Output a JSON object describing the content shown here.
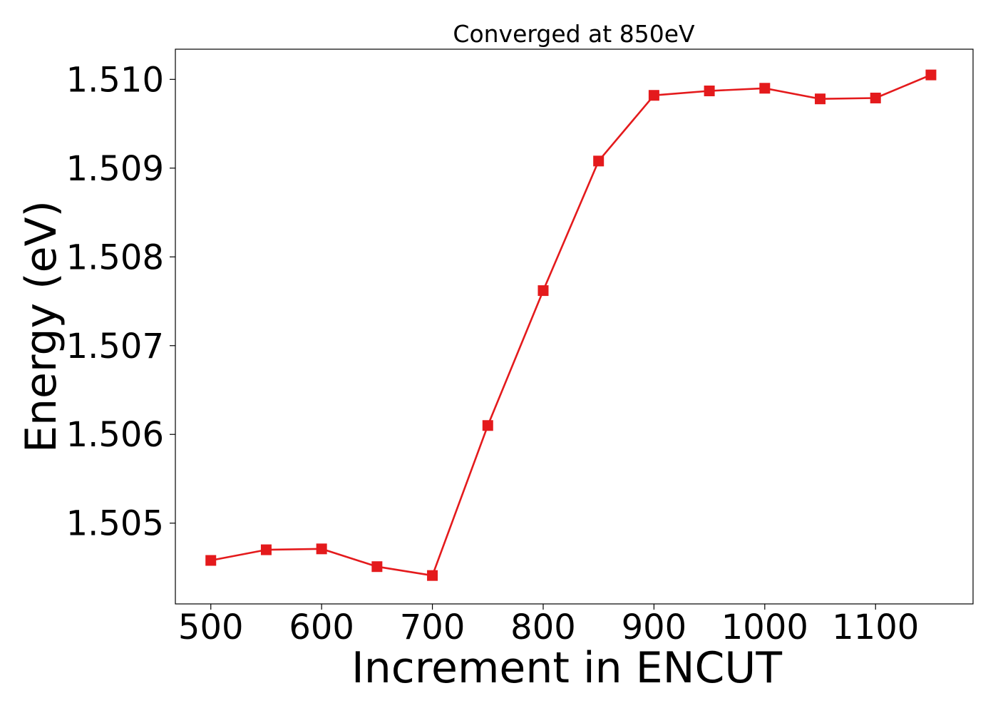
{
  "chart_data": {
    "type": "line",
    "title": "Converged at 850eV",
    "xlabel": "Increment in ENCUT",
    "ylabel": "Energy (eV)",
    "x_ticks": [
      500,
      600,
      700,
      800,
      900,
      1000,
      1100
    ],
    "y_ticks": [
      1.505,
      1.506,
      1.507,
      1.508,
      1.509,
      1.51
    ],
    "y_tick_labels": [
      "1.505",
      "1.506",
      "1.507",
      "1.508",
      "1.509",
      "1.510"
    ],
    "xlim": [
      468,
      1188
    ],
    "ylim": [
      1.50409,
      1.51034
    ],
    "grid": false,
    "legend": "none",
    "series": [
      {
        "color": "#e41a1c",
        "marker": "square",
        "x": [
          500,
          550,
          600,
          650,
          700,
          750,
          800,
          850,
          900,
          950,
          1000,
          1050,
          1100,
          1150
        ],
        "y": [
          1.50458,
          1.5047,
          1.50471,
          1.50451,
          1.50441,
          1.5061,
          1.50762,
          1.50908,
          1.50982,
          1.50987,
          1.5099,
          1.50978,
          1.50979,
          1.51005
        ]
      }
    ]
  }
}
